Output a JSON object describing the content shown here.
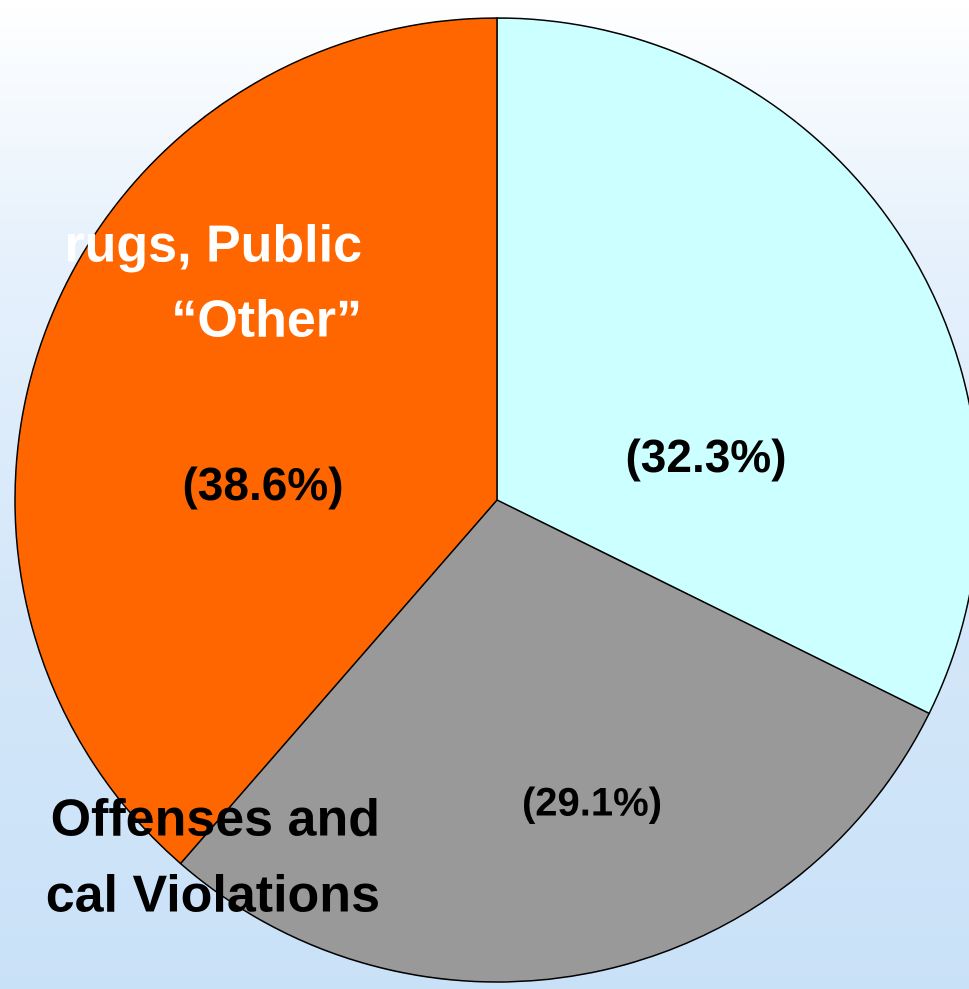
{
  "chart_data": {
    "type": "pie",
    "start": "12 o'clock, clockwise",
    "slices": [
      {
        "label": "(32.3%)",
        "value": 32.3,
        "color": "#ccffff"
      },
      {
        "label": "(29.1%)",
        "value": 29.1,
        "color": "#999999"
      },
      {
        "label": "(38.6%)",
        "value": 38.6,
        "color": "#ff6600"
      }
    ],
    "category_labels": [
      {
        "lines": [
          "rugs, Public",
          "“Other”"
        ],
        "color": "#ffffff",
        "slice": 2
      },
      {
        "lines": [
          "Offenses and",
          "cal Violations"
        ],
        "color": "#000000",
        "slice": 1
      }
    ],
    "outline_color": "#000000",
    "legend": "none"
  }
}
